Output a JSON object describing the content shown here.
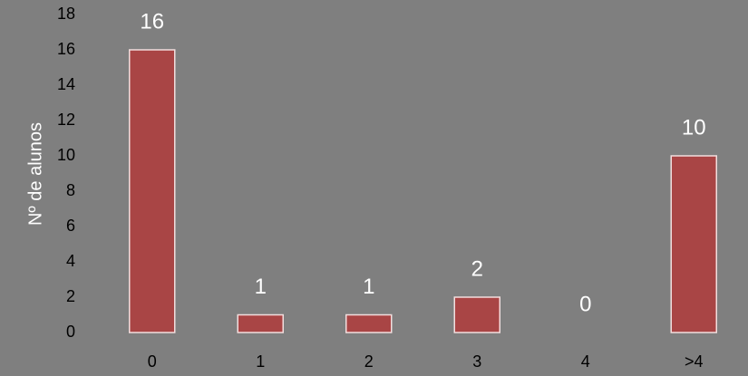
{
  "chart_data": {
    "type": "bar",
    "title": "",
    "xlabel": "",
    "ylabel": "Nº de alunos",
    "categories": [
      "0",
      "1",
      "2",
      "3",
      "4",
      ">4"
    ],
    "values": [
      16,
      1,
      1,
      2,
      0,
      10
    ],
    "data_labels": [
      "16",
      "1",
      "1",
      "2",
      "0",
      "10"
    ],
    "yticks": [
      "0",
      "2",
      "4",
      "6",
      "8",
      "10",
      "12",
      "14",
      "16",
      "18"
    ],
    "ylim": [
      0,
      18
    ],
    "grid": false,
    "legend": "none",
    "colors": {
      "background": "#7f7f7f",
      "bar_fill": "#a94545",
      "bar_stroke": "#f2dede",
      "tick_text": "#000000",
      "label_text": "#ffffff"
    }
  }
}
